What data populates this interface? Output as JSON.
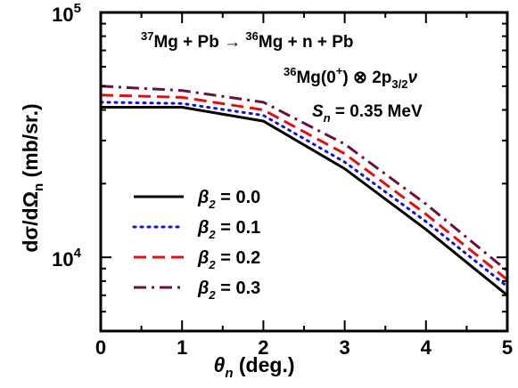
{
  "chart_data": {
    "type": "line",
    "xlabel_symbol": "θ",
    "xlabel_sub": "n",
    "xlabel_unit": " (deg.)",
    "ylabel_main": "dσ/dΩ",
    "ylabel_sub": "n",
    "ylabel_unit": " (mb/sr.)",
    "xlim": [
      0,
      5
    ],
    "ylim": [
      5000,
      100000
    ],
    "yscale": "log",
    "xticks": [
      "0",
      "1",
      "2",
      "3",
      "4",
      "5"
    ],
    "y_major_ticks": [
      {
        "value": 10000,
        "base": "10",
        "exp": "4"
      },
      {
        "value": 100000,
        "base": "10",
        "exp": "5"
      }
    ],
    "grid": false,
    "legend_position": "bottom-left",
    "annotations": {
      "reaction": {
        "pre1": "37",
        "t1": "Mg + Pb → ",
        "pre2": "36",
        "t2": "Mg + n + Pb"
      },
      "state": {
        "pre": "36",
        "t1": "Mg(0",
        "sup": "+",
        "t2": ") ⊗ 2p",
        "sub": "3/2",
        "t3": "ν"
      },
      "separation": {
        "sym": "S",
        "sub": "n",
        "rest": " = 0.35 MeV"
      }
    },
    "series": [
      {
        "name_sym": "β",
        "name_sub": "2",
        "name_rest": " = 0.0",
        "color": "#000000",
        "dash": "solid",
        "x": [
          0,
          1,
          2,
          3,
          4,
          5
        ],
        "y": [
          41000,
          41000,
          36000,
          23000,
          13000,
          7000
        ]
      },
      {
        "name_sym": "β",
        "name_sub": "2",
        "name_rest": " = 0.1",
        "color": "#1010d0",
        "dash": "dotted",
        "x": [
          0,
          1,
          2,
          3,
          4,
          5
        ],
        "y": [
          43000,
          42500,
          38000,
          24500,
          14000,
          7600
        ]
      },
      {
        "name_sym": "β",
        "name_sub": "2",
        "name_rest": " = 0.2",
        "color": "#e01010",
        "dash": "dashed",
        "x": [
          0,
          1,
          2,
          3,
          4,
          5
        ],
        "y": [
          46000,
          45000,
          40000,
          26500,
          15000,
          8100
        ]
      },
      {
        "name_sym": "β",
        "name_sub": "2",
        "name_rest": " = 0.3",
        "color": "#6a1040",
        "dash": "dashdot",
        "x": [
          0,
          1,
          2,
          3,
          4,
          5
        ],
        "y": [
          50000,
          48000,
          43000,
          29000,
          16500,
          8800
        ]
      }
    ]
  }
}
